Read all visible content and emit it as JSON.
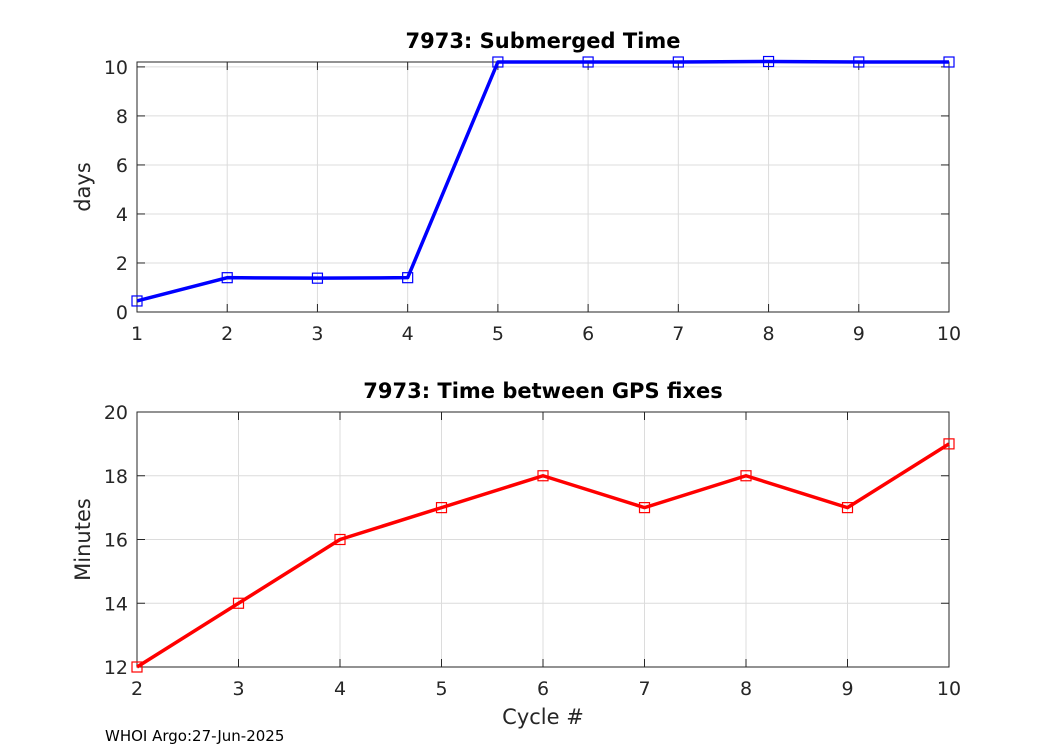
{
  "chart_data": [
    {
      "type": "line",
      "title": "7973: Submerged Time",
      "xlabel": "",
      "ylabel": "days",
      "x": [
        1,
        2,
        3,
        4,
        5,
        6,
        7,
        8,
        9,
        10
      ],
      "series": [
        {
          "values": [
            0.45,
            1.4,
            1.38,
            1.4,
            10.2,
            10.2,
            10.2,
            10.22,
            10.2,
            10.2
          ],
          "color": "#0000ff",
          "marker": "square"
        }
      ],
      "xlim": [
        1,
        10
      ],
      "ylim": [
        0,
        10.2
      ],
      "xticks": [
        1,
        2,
        3,
        4,
        5,
        6,
        7,
        8,
        9,
        10
      ],
      "yticks": [
        0,
        2,
        4,
        6,
        8,
        10
      ],
      "grid": true
    },
    {
      "type": "line",
      "title": "7973: Time between GPS fixes",
      "xlabel": "Cycle #",
      "ylabel": "Minutes",
      "x": [
        2,
        3,
        4,
        5,
        6,
        7,
        8,
        9,
        10
      ],
      "series": [
        {
          "values": [
            12,
            14,
            16,
            17,
            18,
            17,
            18,
            17,
            19
          ],
          "color": "#ff0000",
          "marker": "square"
        }
      ],
      "xlim": [
        2,
        10
      ],
      "ylim": [
        12,
        20
      ],
      "xticks": [
        2,
        3,
        4,
        5,
        6,
        7,
        8,
        9,
        10
      ],
      "yticks": [
        12,
        14,
        16,
        18,
        20
      ],
      "grid": true
    }
  ],
  "footer": "WHOI Argo:27-Jun-2025"
}
